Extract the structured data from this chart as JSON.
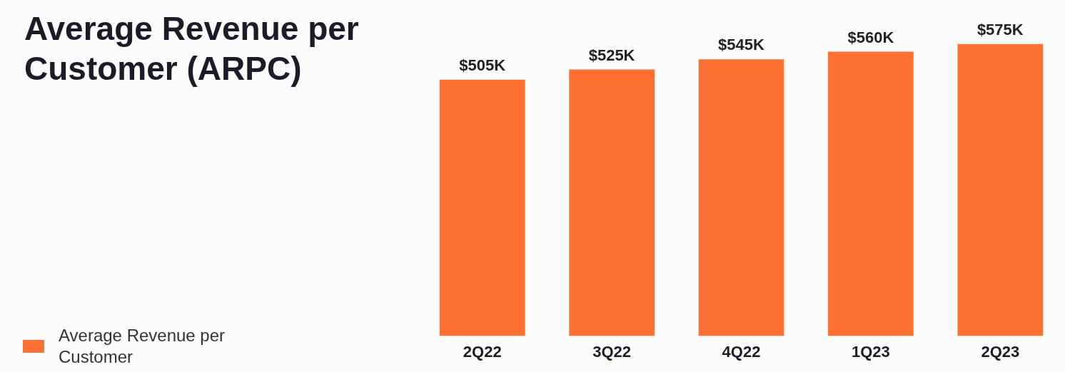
{
  "chart_data": {
    "type": "bar",
    "title": "Average Revenue per Customer (ARPC)",
    "categories": [
      "2Q22",
      "3Q22",
      "4Q22",
      "1Q23",
      "2Q23"
    ],
    "series": [
      {
        "name": "Average Revenue per Customer",
        "color": "#ff7033",
        "values": [
          505,
          525,
          545,
          560,
          575
        ],
        "value_labels": [
          "$505K",
          "$525K",
          "$545K",
          "$560K",
          "$575K"
        ]
      }
    ],
    "legend": "bottom left",
    "grid": false,
    "tick_labels": "x"
  }
}
